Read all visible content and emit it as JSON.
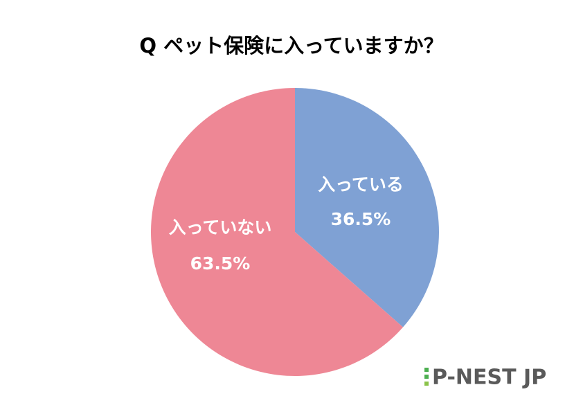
{
  "chart_data": {
    "type": "pie",
    "title": "Q ペット保険に入っていますか？",
    "categories": [
      "入っている",
      "入っていない"
    ],
    "values": [
      36.5,
      63.5
    ],
    "value_labels": [
      "36.5%",
      "63.5%"
    ],
    "colors": [
      "#7fa1d4",
      "#ee8795"
    ]
  },
  "logo": "P-NEST JP"
}
